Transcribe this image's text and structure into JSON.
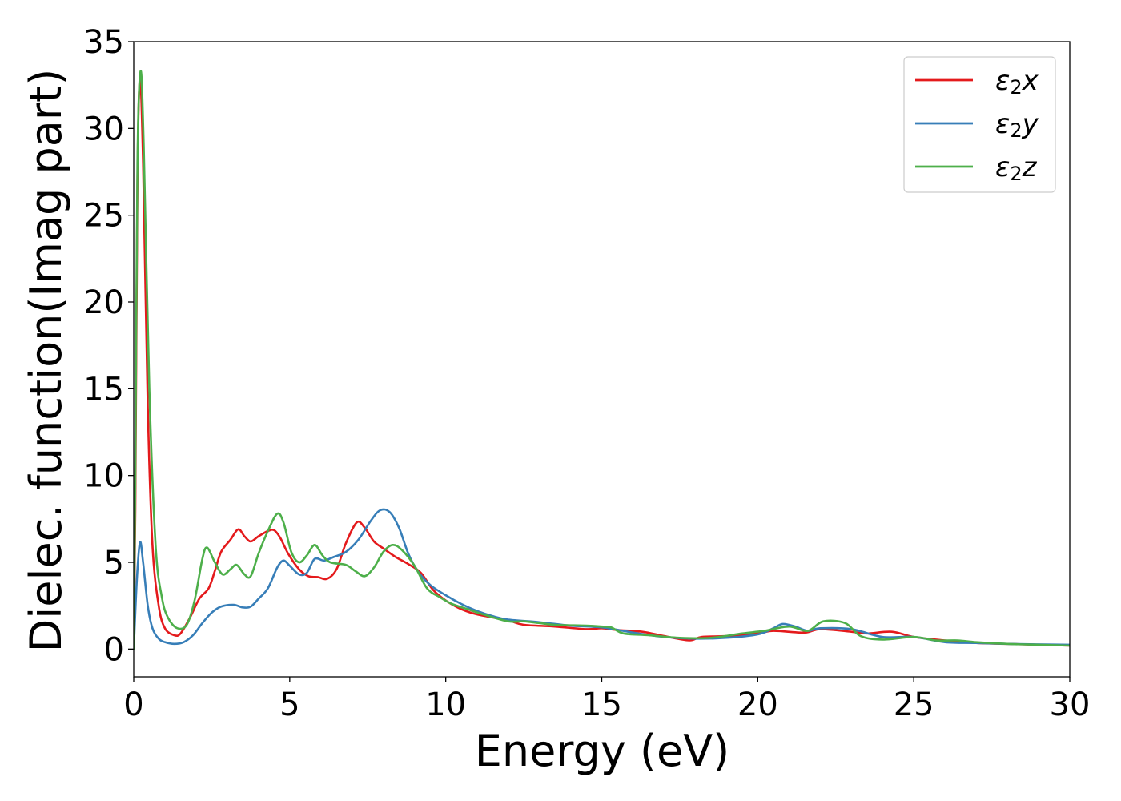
{
  "chart_data": {
    "type": "line",
    "title": "",
    "xlabel": "Energy (eV)",
    "ylabel": "Dielec. function(Imag part)",
    "xlim": [
      0,
      30
    ],
    "ylim": [
      -1.6,
      35
    ],
    "xticks": [
      0,
      5,
      10,
      15,
      20,
      25,
      30
    ],
    "yticks": [
      0,
      5,
      10,
      15,
      20,
      25,
      30,
      35
    ],
    "grid": false,
    "legend_position": "top-right",
    "series": [
      {
        "name": "ε₂x",
        "legend_base": "ε",
        "legend_sub": "2",
        "legend_var": "x",
        "color": "#e41a1c",
        "points": [
          [
            0,
            0
          ],
          [
            0.05,
            8
          ],
          [
            0.12,
            27
          ],
          [
            0.2,
            32.8
          ],
          [
            0.3,
            28
          ],
          [
            0.45,
            14
          ],
          [
            0.6,
            6
          ],
          [
            0.8,
            2.5
          ],
          [
            1.0,
            1.2
          ],
          [
            1.3,
            0.8
          ],
          [
            1.5,
            0.9
          ],
          [
            1.8,
            1.8
          ],
          [
            2.1,
            2.9
          ],
          [
            2.4,
            3.5
          ],
          [
            2.6,
            4.5
          ],
          [
            2.8,
            5.6
          ],
          [
            3.1,
            6.3
          ],
          [
            3.35,
            6.9
          ],
          [
            3.55,
            6.5
          ],
          [
            3.75,
            6.2
          ],
          [
            4.0,
            6.5
          ],
          [
            4.3,
            6.8
          ],
          [
            4.5,
            6.85
          ],
          [
            4.7,
            6.4
          ],
          [
            4.95,
            5.5
          ],
          [
            5.3,
            4.6
          ],
          [
            5.6,
            4.2
          ],
          [
            5.9,
            4.15
          ],
          [
            6.2,
            4.05
          ],
          [
            6.5,
            4.6
          ],
          [
            6.8,
            6.1
          ],
          [
            7.15,
            7.3
          ],
          [
            7.4,
            7.0
          ],
          [
            7.7,
            6.2
          ],
          [
            8.0,
            5.8
          ],
          [
            8.4,
            5.3
          ],
          [
            8.8,
            4.9
          ],
          [
            9.2,
            4.4
          ],
          [
            9.6,
            3.4
          ],
          [
            10.0,
            2.8
          ],
          [
            10.5,
            2.3
          ],
          [
            11.0,
            2.0
          ],
          [
            12.0,
            1.65
          ],
          [
            12.5,
            1.4
          ],
          [
            13.5,
            1.3
          ],
          [
            14.5,
            1.15
          ],
          [
            15.0,
            1.2
          ],
          [
            15.5,
            1.1
          ],
          [
            16.3,
            1.0
          ],
          [
            17.0,
            0.75
          ],
          [
            17.8,
            0.5
          ],
          [
            18.2,
            0.7
          ],
          [
            19.0,
            0.75
          ],
          [
            20.0,
            0.9
          ],
          [
            20.5,
            1.05
          ],
          [
            21.5,
            0.95
          ],
          [
            22.0,
            1.15
          ],
          [
            23.0,
            1.0
          ],
          [
            23.5,
            0.9
          ],
          [
            24.3,
            1.0
          ],
          [
            25.0,
            0.7
          ],
          [
            26.0,
            0.5
          ],
          [
            27.0,
            0.35
          ],
          [
            28.0,
            0.3
          ],
          [
            29.0,
            0.25
          ],
          [
            30.0,
            0.2
          ]
        ]
      },
      {
        "name": "ε₂y",
        "legend_base": "ε",
        "legend_sub": "2",
        "legend_var": "y",
        "color": "#377eb8",
        "points": [
          [
            0,
            0
          ],
          [
            0.1,
            4.0
          ],
          [
            0.2,
            6.15
          ],
          [
            0.3,
            5.0
          ],
          [
            0.45,
            2.5
          ],
          [
            0.6,
            1.2
          ],
          [
            0.8,
            0.6
          ],
          [
            1.0,
            0.4
          ],
          [
            1.3,
            0.3
          ],
          [
            1.6,
            0.4
          ],
          [
            1.9,
            0.8
          ],
          [
            2.2,
            1.5
          ],
          [
            2.5,
            2.1
          ],
          [
            2.8,
            2.45
          ],
          [
            3.2,
            2.55
          ],
          [
            3.5,
            2.4
          ],
          [
            3.75,
            2.45
          ],
          [
            4.0,
            2.9
          ],
          [
            4.3,
            3.5
          ],
          [
            4.6,
            4.7
          ],
          [
            4.8,
            5.1
          ],
          [
            5.0,
            4.8
          ],
          [
            5.3,
            4.3
          ],
          [
            5.55,
            4.4
          ],
          [
            5.8,
            5.2
          ],
          [
            6.1,
            5.1
          ],
          [
            6.4,
            5.3
          ],
          [
            6.8,
            5.6
          ],
          [
            7.2,
            6.3
          ],
          [
            7.6,
            7.4
          ],
          [
            7.9,
            8.0
          ],
          [
            8.2,
            7.9
          ],
          [
            8.5,
            7.0
          ],
          [
            8.8,
            5.5
          ],
          [
            9.1,
            4.5
          ],
          [
            9.5,
            3.7
          ],
          [
            10.0,
            3.1
          ],
          [
            10.5,
            2.6
          ],
          [
            11.0,
            2.2
          ],
          [
            11.5,
            1.9
          ],
          [
            12.0,
            1.7
          ],
          [
            13.0,
            1.55
          ],
          [
            14.0,
            1.35
          ],
          [
            15.0,
            1.25
          ],
          [
            16.0,
            0.95
          ],
          [
            17.0,
            0.7
          ],
          [
            18.0,
            0.6
          ],
          [
            19.0,
            0.65
          ],
          [
            20.0,
            0.85
          ],
          [
            20.5,
            1.2
          ],
          [
            20.8,
            1.45
          ],
          [
            21.2,
            1.3
          ],
          [
            21.6,
            1.05
          ],
          [
            22.0,
            1.2
          ],
          [
            23.0,
            1.15
          ],
          [
            24.0,
            0.7
          ],
          [
            25.0,
            0.7
          ],
          [
            26.0,
            0.4
          ],
          [
            27.0,
            0.35
          ],
          [
            28.0,
            0.3
          ],
          [
            30.0,
            0.25
          ]
        ]
      },
      {
        "name": "ε₂z",
        "legend_base": "ε",
        "legend_sub": "2",
        "legend_var": "z",
        "color": "#4daf4a",
        "points": [
          [
            0,
            0
          ],
          [
            0.05,
            10
          ],
          [
            0.12,
            28
          ],
          [
            0.22,
            33.3
          ],
          [
            0.32,
            29
          ],
          [
            0.5,
            15
          ],
          [
            0.7,
            6
          ],
          [
            0.9,
            3
          ],
          [
            1.1,
            1.8
          ],
          [
            1.4,
            1.2
          ],
          [
            1.7,
            1.4
          ],
          [
            1.95,
            2.8
          ],
          [
            2.2,
            5.2
          ],
          [
            2.35,
            5.85
          ],
          [
            2.6,
            5.0
          ],
          [
            2.85,
            4.3
          ],
          [
            3.1,
            4.6
          ],
          [
            3.3,
            4.85
          ],
          [
            3.55,
            4.3
          ],
          [
            3.75,
            4.2
          ],
          [
            4.0,
            5.5
          ],
          [
            4.3,
            6.8
          ],
          [
            4.6,
            7.8
          ],
          [
            4.8,
            7.3
          ],
          [
            5.05,
            5.6
          ],
          [
            5.3,
            5.0
          ],
          [
            5.55,
            5.4
          ],
          [
            5.8,
            6.0
          ],
          [
            6.05,
            5.4
          ],
          [
            6.3,
            5.0
          ],
          [
            6.8,
            4.85
          ],
          [
            7.1,
            4.5
          ],
          [
            7.4,
            4.2
          ],
          [
            7.7,
            4.7
          ],
          [
            8.0,
            5.6
          ],
          [
            8.3,
            6.0
          ],
          [
            8.6,
            5.7
          ],
          [
            9.0,
            4.8
          ],
          [
            9.4,
            3.5
          ],
          [
            9.8,
            3.0
          ],
          [
            10.2,
            2.6
          ],
          [
            10.7,
            2.3
          ],
          [
            11.2,
            2.0
          ],
          [
            12.0,
            1.6
          ],
          [
            12.5,
            1.6
          ],
          [
            13.0,
            1.5
          ],
          [
            13.5,
            1.4
          ],
          [
            14.5,
            1.35
          ],
          [
            15.0,
            1.3
          ],
          [
            15.3,
            1.25
          ],
          [
            15.7,
            0.9
          ],
          [
            16.5,
            0.8
          ],
          [
            17.5,
            0.65
          ],
          [
            18.5,
            0.65
          ],
          [
            19.5,
            0.9
          ],
          [
            20.2,
            1.05
          ],
          [
            21.0,
            1.3
          ],
          [
            21.6,
            1.05
          ],
          [
            22.1,
            1.6
          ],
          [
            22.8,
            1.5
          ],
          [
            23.3,
            0.75
          ],
          [
            24.0,
            0.55
          ],
          [
            25.0,
            0.7
          ],
          [
            25.7,
            0.5
          ],
          [
            26.4,
            0.5
          ],
          [
            27.0,
            0.4
          ],
          [
            28.0,
            0.3
          ],
          [
            29.0,
            0.25
          ],
          [
            30.0,
            0.2
          ]
        ]
      }
    ]
  }
}
